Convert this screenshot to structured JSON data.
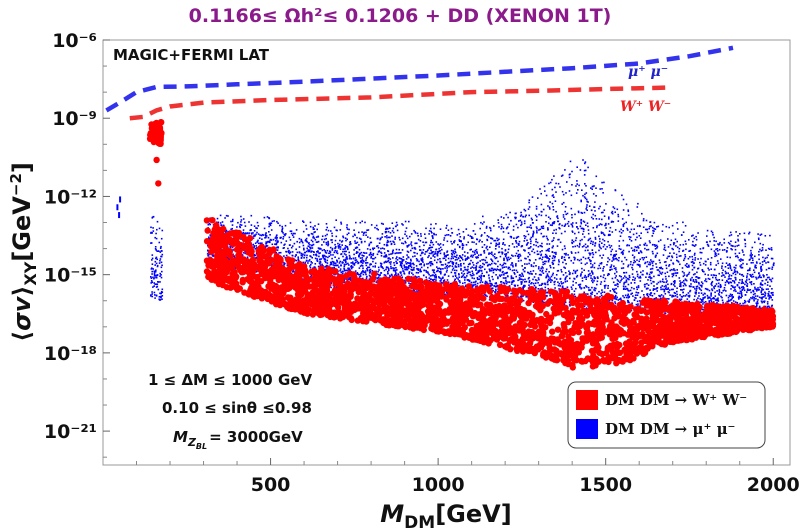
{
  "chart_data": {
    "type": "scatter",
    "title": "0.1166≤ Ωh²≤ 0.1206 + DD (XENON 1T)",
    "xlabel": "M_DM[GeV]",
    "ylabel": "⟨σv⟩_XY[GeV⁻²]",
    "xlim": [
      0,
      2050
    ],
    "ylog": true,
    "ylim_exp": [
      -22.3,
      -6
    ],
    "xticks": [
      "500",
      "1000",
      "1500",
      "2000"
    ],
    "xtick_values": [
      500,
      1000,
      1500,
      2000
    ],
    "yticks": [
      "10⁻⁶",
      "10⁻⁹",
      "10⁻¹²",
      "10⁻¹⁵",
      "10⁻¹⁸",
      "10⁻²¹"
    ],
    "ytick_exponents": [
      -6,
      -9,
      -12,
      -15,
      -18,
      -21
    ],
    "annotations": {
      "top_left": "MAGIC+FERMI LAT",
      "delta_m": "1 ≤ ΔM  ≤ 1000 GeV",
      "sin_theta": "0.10 ≤ sinθ ≤0.98",
      "mz_prefix": "M",
      "mz_sub": "Z",
      "mz_subsub": "BL",
      "mz_value": "= 3000GeV"
    },
    "limit_curves": [
      {
        "name": "μ⁺ μ⁻",
        "color": "#3333ee",
        "style": "dashed",
        "points": [
          [
            10,
            -8.7
          ],
          [
            50,
            -8.4
          ],
          [
            100,
            -8.0
          ],
          [
            160,
            -7.8
          ],
          [
            250,
            -7.78
          ],
          [
            400,
            -7.7
          ],
          [
            600,
            -7.6
          ],
          [
            800,
            -7.48
          ],
          [
            1000,
            -7.36
          ],
          [
            1200,
            -7.22
          ],
          [
            1400,
            -7.08
          ],
          [
            1600,
            -6.9
          ],
          [
            1750,
            -6.62
          ],
          [
            1880,
            -6.3
          ]
        ]
      },
      {
        "name": "W⁺ W⁻",
        "color": "#ee3333",
        "style": "dashed",
        "points": [
          [
            80,
            -9.0
          ],
          [
            120,
            -8.95
          ],
          [
            160,
            -8.7
          ],
          [
            200,
            -8.55
          ],
          [
            300,
            -8.4
          ],
          [
            500,
            -8.3
          ],
          [
            800,
            -8.2
          ],
          [
            1100,
            -8.0
          ],
          [
            1300,
            -7.95
          ],
          [
            1500,
            -7.88
          ],
          [
            1700,
            -7.82
          ]
        ]
      }
    ],
    "series": [
      {
        "name": "DM DM → W⁺ W⁻",
        "color": "#ff0000",
        "marker": "circle",
        "regions": [
          {
            "x": [
              310,
              2000
            ],
            "lower": [
              [
                320,
                -15.3
              ],
              [
                600,
                -16.5
              ],
              [
                1000,
                -17.2
              ],
              [
                1200,
                -17.8
              ],
              [
                1400,
                -18.6
              ],
              [
                1550,
                -18.4
              ],
              [
                1700,
                -17.6
              ],
              [
                2000,
                -17.0
              ]
            ],
            "upper": [
              [
                320,
                -12.8
              ],
              [
                600,
                -14.6
              ],
              [
                1000,
                -15.3
              ],
              [
                1400,
                -15.6
              ],
              [
                1600,
                -15.9
              ],
              [
                2000,
                -16.3
              ]
            ],
            "n": 2600
          },
          {
            "x": [
              140,
              175
            ],
            "lower": [
              [
                140,
                -9.9
              ],
              [
                175,
                -10.0
              ]
            ],
            "upper": [
              [
                140,
                -9.2
              ],
              [
                175,
                -9.1
              ]
            ],
            "n": 60
          }
        ],
        "singles": [
          [
            160,
            -10.6
          ],
          [
            165,
            -11.5
          ]
        ]
      },
      {
        "name": "DM DM → μ⁺ μ⁻",
        "color": "#0000ff",
        "marker": "point",
        "regions": [
          {
            "x": [
              310,
              2000
            ],
            "lower": [
              [
                320,
                -14.5
              ],
              [
                600,
                -15.4
              ],
              [
                1000,
                -15.8
              ],
              [
                1400,
                -16.2
              ],
              [
                1550,
                -16.4
              ],
              [
                2000,
                -16.8
              ]
            ],
            "upper": [
              [
                320,
                -12.6
              ],
              [
                700,
                -12.8
              ],
              [
                1000,
                -12.9
              ],
              [
                1200,
                -12.5
              ],
              [
                1350,
                -11.0
              ],
              [
                1420,
                -10.2
              ],
              [
                1480,
                -10.6
              ],
              [
                1540,
                -11.8
              ],
              [
                1700,
                -12.9
              ],
              [
                2000,
                -13.3
              ]
            ],
            "n": 6000
          },
          {
            "x": [
              140,
              175
            ],
            "lower": [
              [
                140,
                -15.8
              ],
              [
                175,
                -16.0
              ]
            ],
            "upper": [
              [
                140,
                -12.6
              ],
              [
                175,
                -12.8
              ]
            ],
            "n": 120
          }
        ],
        "singles": [
          [
            40,
            -12.3
          ],
          [
            45,
            -12.6
          ],
          [
            48,
            -12.0
          ]
        ]
      }
    ],
    "legend": {
      "position": "bottom-right",
      "items": [
        "DM DM → W⁺ W⁻",
        "DM DM → μ⁺ μ⁻"
      ],
      "colors": [
        "#ff0000",
        "#0000ff"
      ]
    },
    "title_color": "#8b1a8b",
    "frame_color": "#999999"
  }
}
